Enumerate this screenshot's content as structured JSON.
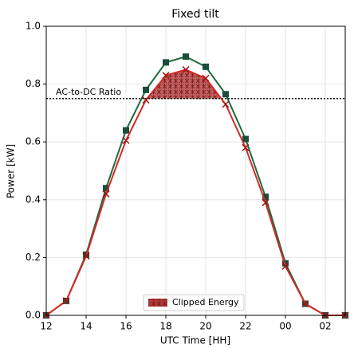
{
  "chart_data": {
    "type": "line",
    "title": "Fixed tilt",
    "x_label": "UTC Time [HH]",
    "y_label": "Power [kW]",
    "x": [
      12,
      13,
      14,
      15,
      16,
      17,
      18,
      19,
      20,
      21,
      22,
      23,
      24,
      25,
      26,
      27
    ],
    "series": [
      {
        "color": "#1e6b3c",
        "marker": "square",
        "values": [
          0,
          0.05,
          0.21,
          0.44,
          0.64,
          0.78,
          0.875,
          0.895,
          0.86,
          0.765,
          0.61,
          0.41,
          0.18,
          0.04,
          0,
          0
        ]
      },
      {
        "color": "#d62728",
        "marker": "x",
        "values": [
          0,
          0.05,
          0.205,
          0.42,
          0.605,
          0.745,
          0.83,
          0.85,
          0.82,
          0.73,
          0.58,
          0.39,
          0.17,
          0.04,
          0,
          0
        ]
      }
    ],
    "ac_dc_ratio": {
      "label": "AC-to-DC Ratio",
      "value": 0.75
    },
    "fill": {
      "label": "Clipped Energy",
      "color": "#b03a3a"
    },
    "xlim": [
      12,
      27
    ],
    "xticks": [
      12,
      14,
      16,
      18,
      20,
      22,
      {
        "value": 24,
        "label": "00"
      },
      {
        "value": 26,
        "label": "02"
      }
    ],
    "ylim": [
      0,
      1
    ],
    "yticks": [
      {
        "value": 0,
        "label": "0.0"
      },
      0.2,
      0.4,
      0.6,
      0.8,
      {
        "value": 1,
        "label": "1.0"
      }
    ],
    "grid": true
  }
}
